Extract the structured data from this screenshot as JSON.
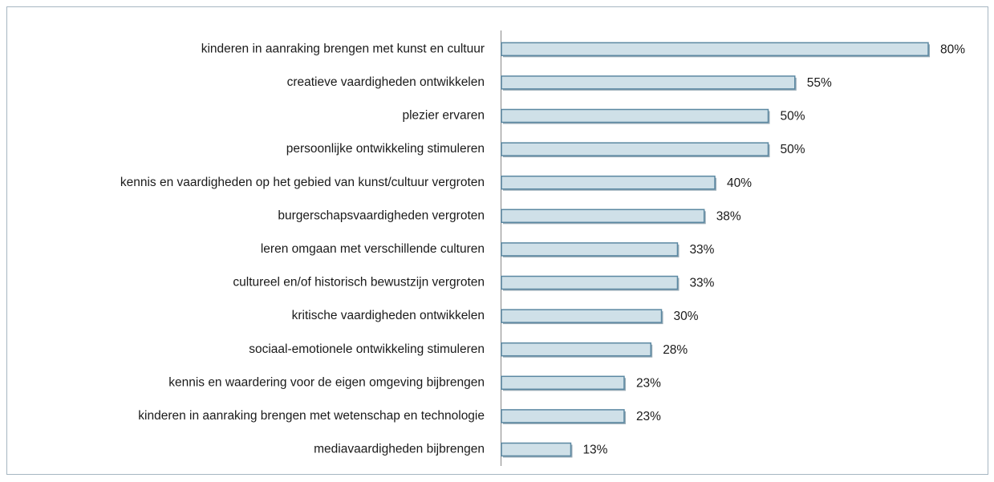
{
  "chart_data": {
    "type": "bar",
    "orientation": "horizontal",
    "categories": [
      "kinderen in aanraking brengen met kunst en cultuur",
      "creatieve vaardigheden ontwikkelen",
      "plezier ervaren",
      "persoonlijke ontwikkeling stimuleren",
      "kennis en vaardigheden op het gebied van kunst/cultuur vergroten",
      "burgerschapsvaardigheden vergroten",
      "leren omgaan met verschillende culturen",
      "cultureel en/of historisch bewustzijn vergroten",
      "kritische vaardigheden ontwikkelen",
      "sociaal-emotionele ontwikkeling stimuleren",
      "kennis en waardering voor de eigen omgeving bijbrengen",
      "kinderen in aanraking brengen met wetenschap en technologie",
      "mediavaardigheden bijbrengen"
    ],
    "values": [
      80,
      55,
      50,
      50,
      40,
      38,
      33,
      33,
      30,
      28,
      23,
      23,
      13
    ],
    "value_labels": [
      "80%",
      "55%",
      "50%",
      "50%",
      "40%",
      "38%",
      "33%",
      "33%",
      "30%",
      "28%",
      "23%",
      "23%",
      "13%"
    ],
    "color": "#cfe0e8",
    "edge_color": "#5b88a2"
  }
}
